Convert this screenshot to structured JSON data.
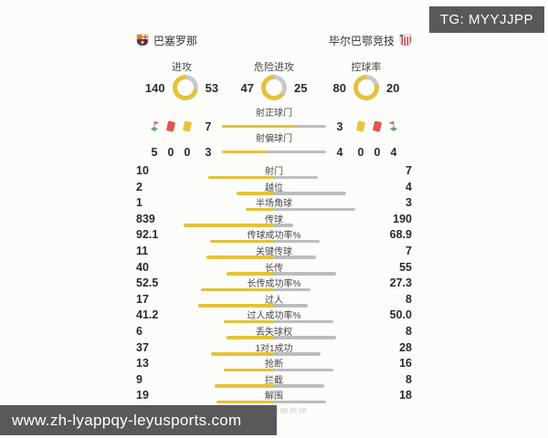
{
  "overlays": {
    "tg_badge": "TG: MYYJJPP",
    "site_url": "www.zh-lyappqy-leyusports.com",
    "overlay_bg": "#59595b"
  },
  "colors": {
    "home_accent": "#e6c139",
    "away_accent": "#bdbdbd",
    "ring_away": "#c9c9c9"
  },
  "teams": {
    "home": {
      "name": "巴塞罗那"
    },
    "away": {
      "name": "毕尔巴鄂竞技"
    }
  },
  "gauges": [
    {
      "label": "进攻",
      "home": 140,
      "away": 53
    },
    {
      "label": "危险进攻",
      "home": 47,
      "away": 25
    },
    {
      "label": "控球率",
      "home": 80,
      "away": 20
    }
  ],
  "shots": {
    "on_target": {
      "label": "射正球门",
      "home": 7,
      "away": 3
    },
    "off_target": {
      "label": "射偏球门",
      "home": 3,
      "away": 4
    },
    "home_icons": [
      {
        "icon": "corner-flag-icon",
        "value": "5"
      },
      {
        "icon": "red-card-icon",
        "value": "0"
      },
      {
        "icon": "yellow-card-icon",
        "value": "0"
      }
    ],
    "away_icons": [
      {
        "icon": "yellow-card-icon",
        "value": "0"
      },
      {
        "icon": "red-card-icon",
        "value": "0"
      },
      {
        "icon": "corner-flag-icon",
        "value": "4"
      }
    ]
  },
  "stats": [
    {
      "label": "射门",
      "home": "10",
      "away": "7"
    },
    {
      "label": "越位",
      "home": "2",
      "away": "4"
    },
    {
      "label": "半场角球",
      "home": "1",
      "away": "3"
    },
    {
      "label": "传球",
      "home": "839",
      "away": "190"
    },
    {
      "label": "传球成功率%",
      "home": "92.1",
      "away": "68.9"
    },
    {
      "label": "关键传球",
      "home": "11",
      "away": "7"
    },
    {
      "label": "长传",
      "home": "40",
      "away": "55"
    },
    {
      "label": "长传成功率%",
      "home": "52.5",
      "away": "27.3"
    },
    {
      "label": "过人",
      "home": "17",
      "away": "8"
    },
    {
      "label": "过人成功率%",
      "home": "41.2",
      "away": "50.0"
    },
    {
      "label": "丢失球权",
      "home": "6",
      "away": "8"
    },
    {
      "label": "1对1成功",
      "home": "37",
      "away": "28"
    },
    {
      "label": "抢断",
      "home": "13",
      "away": "16"
    },
    {
      "label": "拦截",
      "home": "9",
      "away": "8"
    },
    {
      "label": "解围",
      "home": "19",
      "away": "18"
    }
  ]
}
